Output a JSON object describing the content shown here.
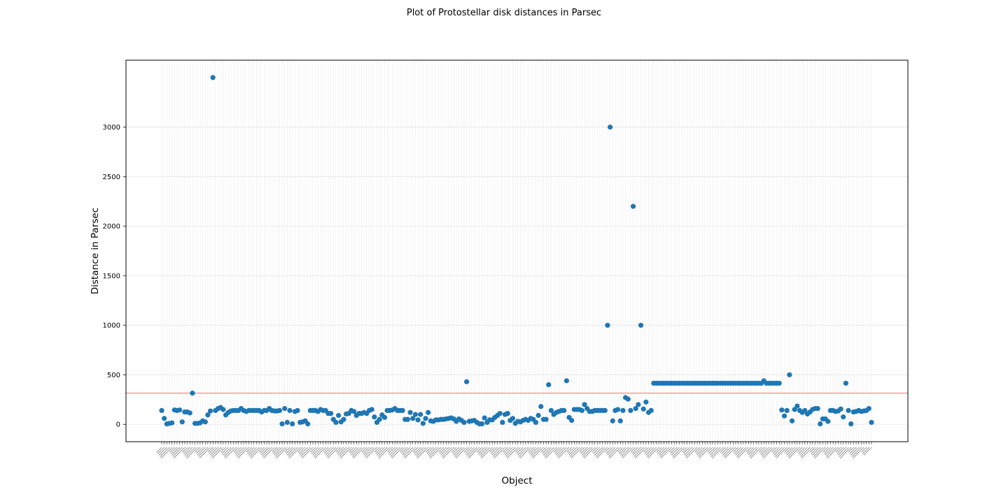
{
  "chart_data": {
    "type": "scatter",
    "title": "Plot of Protostellar disk distances in Parsec",
    "xlabel": "Object",
    "ylabel": "Distance in Parsec",
    "ylim": [
      -175,
      3675
    ],
    "yticks": [
      0,
      500,
      1000,
      1500,
      2000,
      2500,
      3000
    ],
    "grid": true,
    "point_color": "#1f77b4",
    "reference_line": {
      "y": 315,
      "color": "#ff9999"
    },
    "series": [
      {
        "values": [
          140,
          60,
          5,
          10,
          15,
          145,
          140,
          145,
          25,
          125,
          125,
          115,
          315,
          10,
          10,
          15,
          35,
          25,
          95,
          135,
          3500,
          140,
          160,
          170,
          150,
          95,
          120,
          135,
          140,
          140,
          140,
          160,
          140,
          130,
          140,
          140,
          140,
          140,
          140,
          125,
          140,
          140,
          160,
          140,
          135,
          135,
          140,
          5,
          160,
          20,
          140,
          5,
          130,
          140,
          20,
          25,
          35,
          5,
          140,
          140,
          140,
          130,
          150,
          140,
          140,
          110,
          110,
          50,
          20,
          90,
          25,
          50,
          105,
          110,
          140,
          130,
          90,
          110,
          110,
          120,
          110,
          140,
          150,
          75,
          20,
          50,
          95,
          70,
          140,
          140,
          145,
          160,
          140,
          140,
          140,
          50,
          50,
          120,
          60,
          100,
          45,
          100,
          10,
          60,
          120,
          35,
          30,
          45,
          45,
          50,
          50,
          55,
          60,
          65,
          55,
          30,
          55,
          40,
          20,
          430,
          30,
          35,
          40,
          20,
          5,
          5,
          65,
          20,
          45,
          45,
          70,
          90,
          110,
          20,
          100,
          110,
          40,
          60,
          10,
          30,
          25,
          40,
          50,
          40,
          60,
          50,
          20,
          90,
          180,
          50,
          50,
          400,
          140,
          100,
          120,
          130,
          140,
          140,
          440,
          70,
          40,
          150,
          150,
          150,
          140,
          200,
          160,
          130,
          130,
          140,
          140,
          140,
          140,
          140,
          1000,
          3000,
          35,
          140,
          150,
          35,
          140,
          270,
          255,
          140,
          2200,
          160,
          200,
          1000,
          155,
          225,
          120,
          140,
          415,
          415,
          415,
          415,
          415,
          415,
          415,
          415,
          415,
          415,
          415,
          415,
          415,
          415,
          415,
          415,
          415,
          415,
          415,
          415,
          415,
          415,
          415,
          415,
          415,
          415,
          415,
          415,
          415,
          415,
          415,
          415,
          415,
          415,
          415,
          415,
          415,
          415,
          415,
          415,
          415,
          415,
          415,
          440,
          415,
          415,
          415,
          415,
          415,
          415,
          145,
          85,
          140,
          500,
          35,
          150,
          185,
          140,
          120,
          140,
          105,
          125,
          150,
          160,
          160,
          5,
          55,
          55,
          30,
          140,
          140,
          130,
          135,
          155,
          75,
          415,
          140,
          5,
          125,
          130,
          140,
          130,
          135,
          140,
          160,
          20
        ]
      }
    ]
  }
}
